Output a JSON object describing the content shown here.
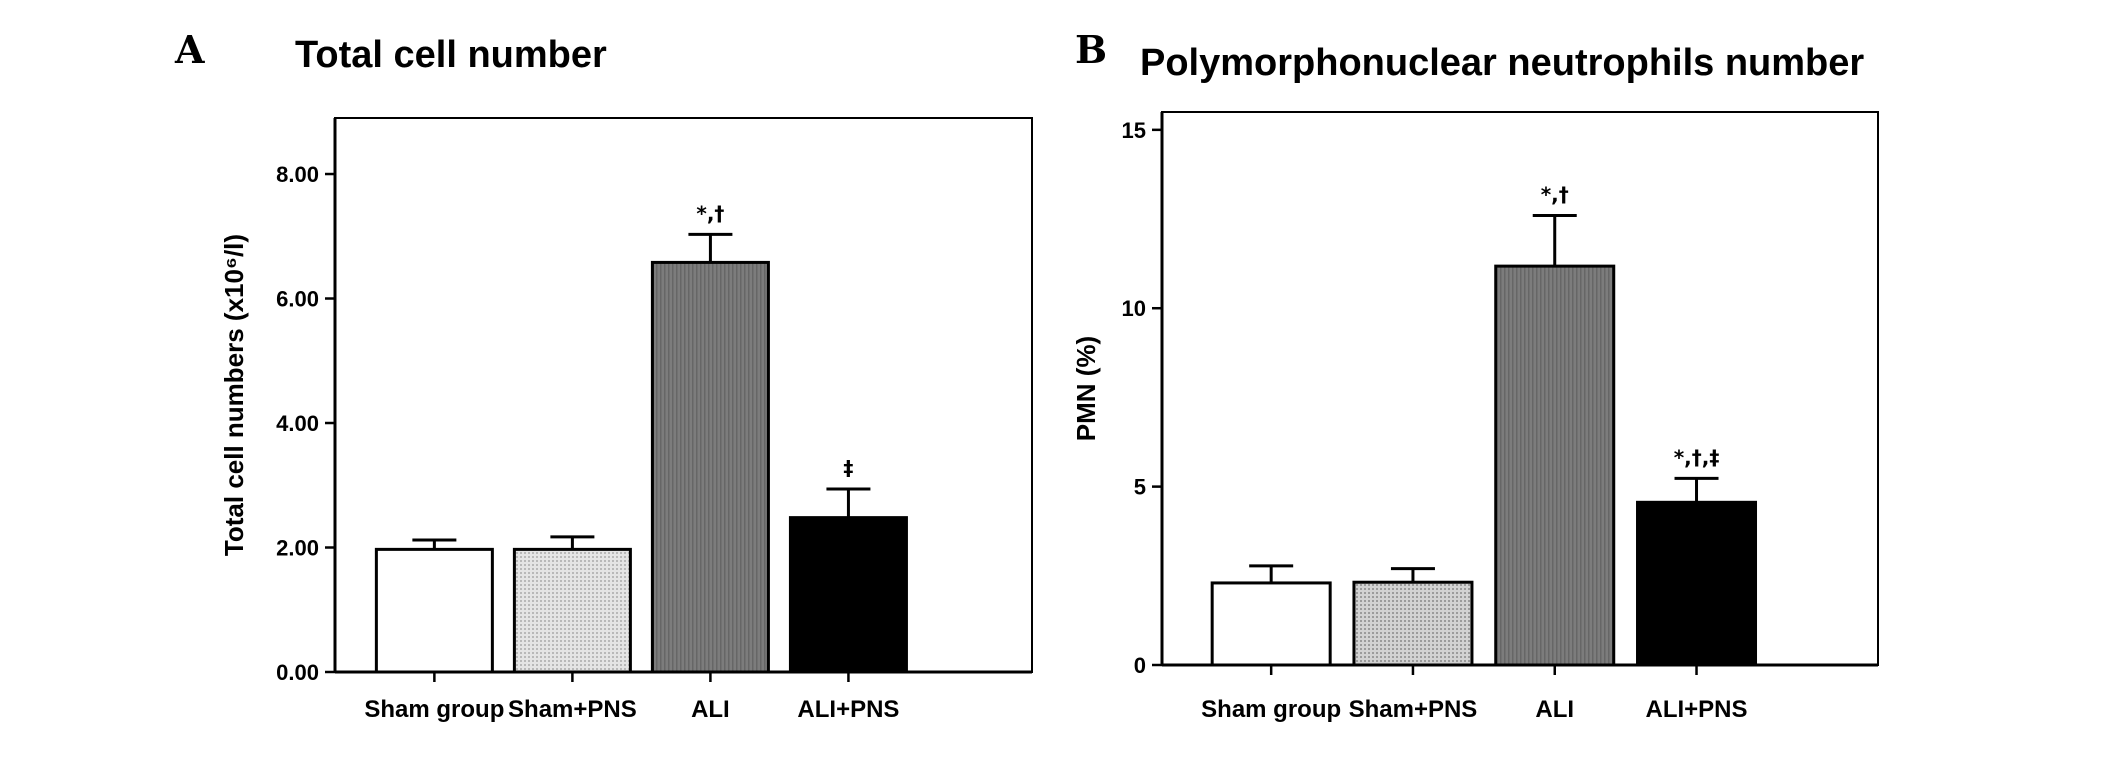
{
  "chart_data": [
    {
      "type": "bar",
      "panel": "A",
      "title": "Total cell number",
      "xlabel": "",
      "ylabel": "Total cell numbers (x10⁶/l)",
      "ylim": [
        0,
        8.9
      ],
      "yticks": [
        0,
        2,
        4,
        6,
        8
      ],
      "ytick_labels": [
        "0.00",
        "2.00",
        "4.00",
        "6.00",
        "8.00"
      ],
      "categories": [
        "Sham group",
        "Sham+PNS",
        "ALI",
        "ALI+PNS"
      ],
      "values": [
        1.97,
        1.97,
        6.58,
        2.48
      ],
      "errors": [
        0.15,
        0.2,
        0.45,
        0.46
      ],
      "significance": [
        "",
        "",
        "*,†",
        "‡"
      ],
      "colors": [
        "#ffffff",
        "#d6d6d6",
        "#7a7a7a",
        "#000000"
      ],
      "grid": false
    },
    {
      "type": "bar",
      "panel": "B",
      "title": "Polymorphonuclear neutrophils number",
      "xlabel": "",
      "ylabel": "PMN (%)",
      "ylim": [
        0,
        15.5
      ],
      "yticks": [
        0,
        5,
        10,
        15
      ],
      "ytick_labels": [
        "0",
        "5",
        "10",
        "15"
      ],
      "categories": [
        "Sham group",
        "Sham+PNS",
        "ALI",
        "ALI+PNS"
      ],
      "values": [
        2.3,
        2.32,
        11.18,
        4.56
      ],
      "errors": [
        0.48,
        0.38,
        1.42,
        0.67
      ],
      "significance": [
        "",
        "",
        "*,†",
        "*,†,‡"
      ],
      "colors": [
        "#ffffff",
        "#c8c8c8",
        "#7a7a7a",
        "#000000"
      ],
      "grid": false
    }
  ]
}
